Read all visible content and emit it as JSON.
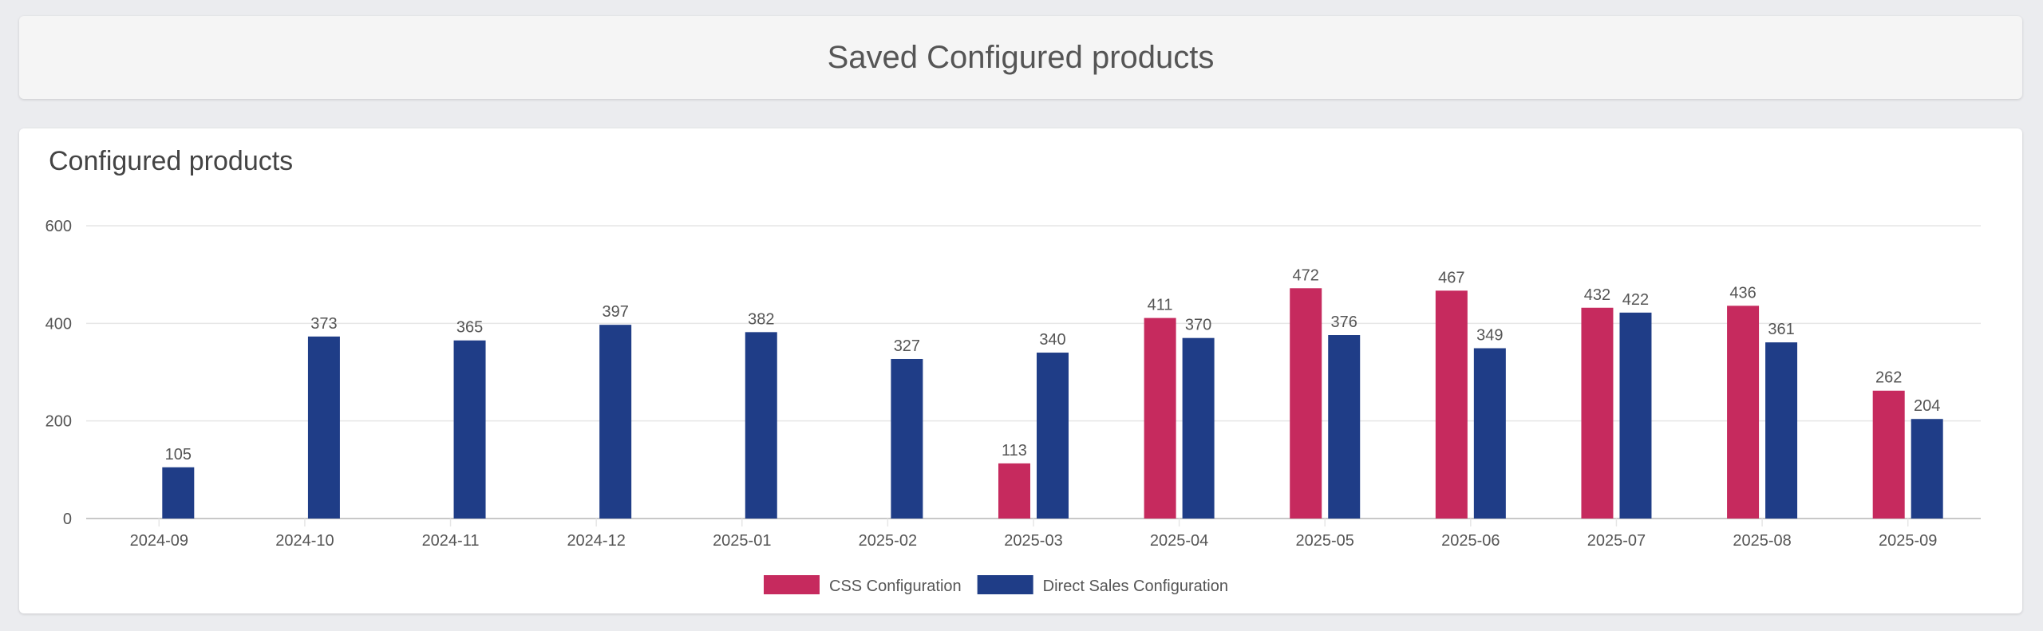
{
  "header": {
    "title": "Saved Configured products"
  },
  "chart_card": {
    "title": "Configured products"
  },
  "chart_data": {
    "type": "bar",
    "title": "Configured products",
    "categories": [
      "2024-09",
      "2024-10",
      "2024-11",
      "2024-12",
      "2025-01",
      "2025-02",
      "2025-03",
      "2025-04",
      "2025-05",
      "2025-06",
      "2025-07",
      "2025-08",
      "2025-09"
    ],
    "series": [
      {
        "name": "CSS Configuration",
        "color": "#c62a5e",
        "values": [
          null,
          null,
          null,
          null,
          null,
          null,
          113,
          411,
          472,
          467,
          432,
          436,
          262
        ]
      },
      {
        "name": "Direct Sales Configuration",
        "color": "#1f3d87",
        "values": [
          105,
          373,
          365,
          397,
          382,
          327,
          340,
          370,
          376,
          349,
          422,
          361,
          204
        ]
      }
    ],
    "ylim": [
      0,
      600
    ],
    "yticks": [
      0,
      200,
      400,
      600
    ],
    "grid": true,
    "legend": "bottom-center",
    "data_labels": true
  }
}
